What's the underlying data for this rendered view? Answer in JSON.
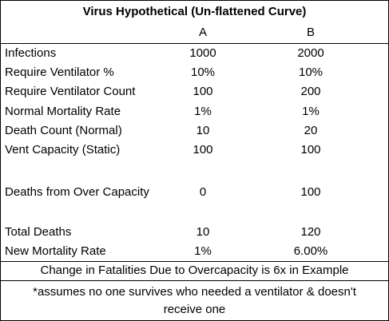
{
  "title": "Virus Hypothetical (Un-flattened Curve)",
  "columns": [
    "A",
    "B"
  ],
  "rows": [
    {
      "label": "Infections",
      "a": "1000",
      "b": "2000"
    },
    {
      "label": "Require Ventilator %",
      "a": "10%",
      "b": "10%"
    },
    {
      "label": "Require Ventilator Count",
      "a": "100",
      "b": "200"
    },
    {
      "label": "Normal Mortality Rate",
      "a": "1%",
      "b": "1%"
    },
    {
      "label": "Death Count (Normal)",
      "a": "10",
      "b": "20"
    },
    {
      "label": "Vent Capacity (Static)",
      "a": "100",
      "b": "100"
    },
    {
      "label": "Deaths from Over Capacity",
      "a": "0",
      "b": "100"
    },
    {
      "label": "Total Deaths",
      "a": "10",
      "b": "120"
    },
    {
      "label": "New Mortality Rate",
      "a": "1%",
      "b": "6.00%"
    }
  ],
  "summary": "Change in Fatalities Due to Overcapacity is 6x in Example",
  "footnote_line1": "*assumes no one survives who needed a ventilator & doesn't",
  "footnote_line2": "receive one"
}
